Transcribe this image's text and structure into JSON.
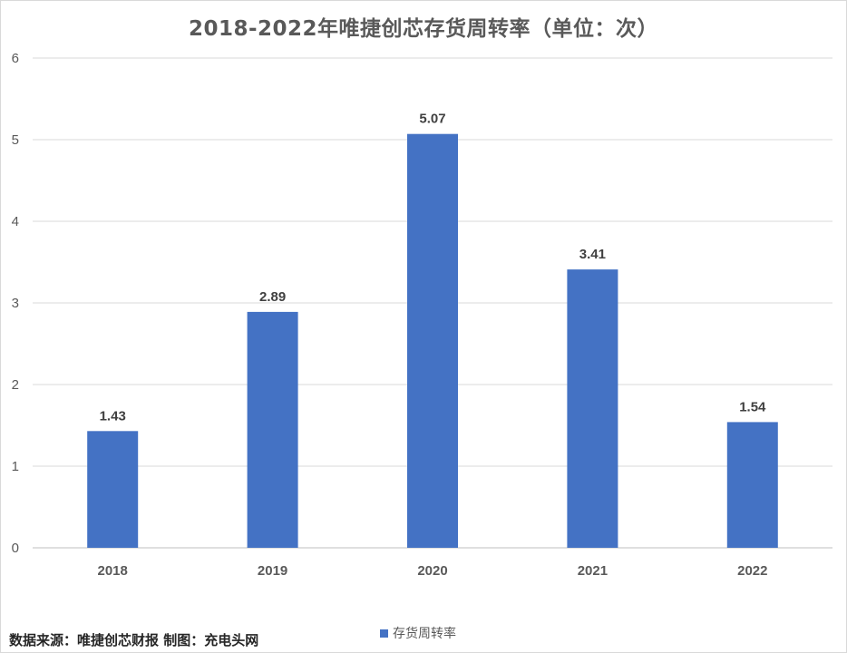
{
  "chart_data": {
    "type": "bar",
    "title": "2018-2022年唯捷创芯存货周转率（单位：次）",
    "categories": [
      "2018",
      "2019",
      "2020",
      "2021",
      "2022"
    ],
    "series": [
      {
        "name": "存货周转率",
        "values": [
          1.43,
          2.89,
          5.07,
          3.41,
          1.54
        ],
        "color": "#4472c4"
      }
    ],
    "yticks": [
      "0",
      "1",
      "2",
      "3",
      "4",
      "5",
      "6"
    ],
    "ylim": [
      0,
      6
    ],
    "grid": true,
    "legend_position": "bottom",
    "data_labels": [
      "1.43",
      "2.89",
      "5.07",
      "3.41",
      "1.54"
    ]
  },
  "footer": {
    "source": "数据来源：唯捷创芯财报 制图：充电头网"
  }
}
